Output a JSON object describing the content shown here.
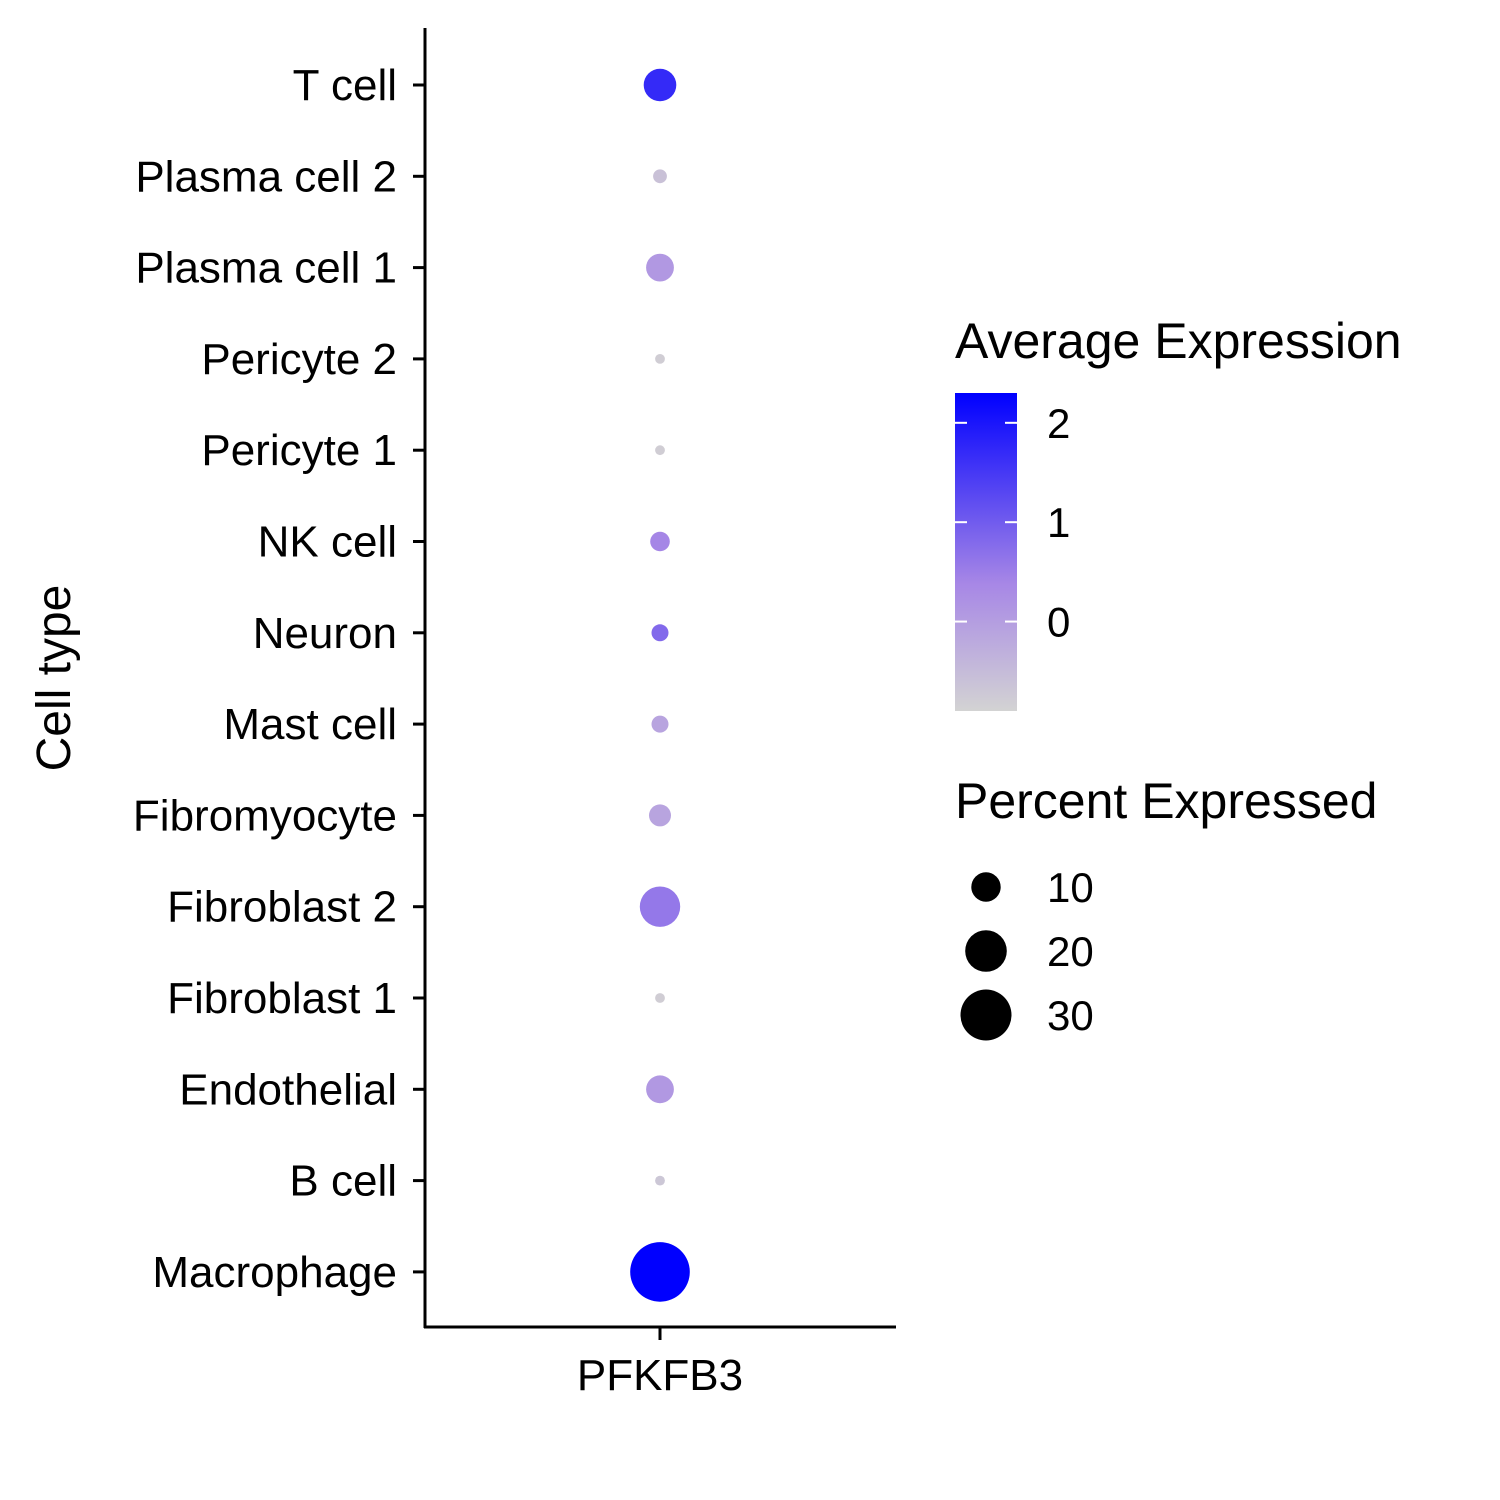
{
  "chart_data": {
    "type": "dot",
    "title": "",
    "xlabel": "",
    "ylabel": "Cell type",
    "genes": [
      "PFKFB3"
    ],
    "categories": [
      "T cell",
      "Plasma cell 2",
      "Plasma cell 1",
      "Pericyte 2",
      "Pericyte 1",
      "NK cell",
      "Neuron",
      "Mast cell",
      "Fibromyocyte",
      "Fibroblast 2",
      "Fibroblast 1",
      "Endothelial",
      "B cell",
      "Macrophage"
    ],
    "series": [
      {
        "gene": "PFKFB3",
        "avg_expression": [
          1.7,
          -0.6,
          0.1,
          -0.8,
          -0.8,
          0.4,
          0.8,
          -0.1,
          -0.1,
          0.6,
          -0.8,
          0.1,
          -0.7,
          2.3
        ],
        "percent_expressed": [
          11,
          2,
          8,
          1,
          1,
          4,
          3,
          3,
          5,
          17,
          1,
          8,
          1,
          37
        ]
      }
    ],
    "color_legend": {
      "title": "Average Expression",
      "ticks": [
        "2",
        "1",
        "0"
      ],
      "tick_values": [
        2,
        1,
        0
      ],
      "range": [
        -0.9,
        2.3
      ],
      "low_color": "#d3d3d3",
      "high_color": "#0000ff"
    },
    "size_legend": {
      "title": "Percent Expressed",
      "labels": [
        "10",
        "20",
        "30"
      ],
      "values": [
        10,
        20,
        30
      ]
    },
    "grid": false,
    "legend_position": "right"
  }
}
